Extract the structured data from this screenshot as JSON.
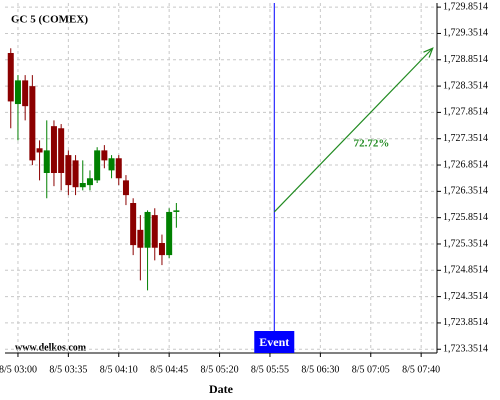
{
  "chart_data": {
    "type": "candlestick",
    "title": "GC 5 (COMEX)",
    "x_label": "Date",
    "watermark": "www.delkos.com",
    "candles": {
      "x": [
        "8/5 02:55",
        "8/5 03:00",
        "8/5 03:05",
        "8/5 03:10",
        "8/5 03:15",
        "8/5 03:20",
        "8/5 03:25",
        "8/5 03:30",
        "8/5 03:35",
        "8/5 03:40",
        "8/5 03:45",
        "8/5 03:50",
        "8/5 03:55",
        "8/5 04:00",
        "8/5 04:05",
        "8/5 04:10",
        "8/5 04:15",
        "8/5 04:20",
        "8/5 04:25",
        "8/5 04:30",
        "8/5 04:35",
        "8/5 04:40",
        "8/5 04:45",
        "8/5 04:50"
      ],
      "open": [
        1728.98,
        1728.01,
        1728.46,
        1728.35,
        1727.17,
        1726.7,
        1727.59,
        1727.55,
        1727.04,
        1726.94,
        1726.43,
        1726.47,
        1726.56,
        1727.13,
        1726.75,
        1726.98,
        1726.56,
        1726.13,
        1725.62,
        1725.28,
        1725.9,
        1725.37,
        1725.14,
        1725.96
      ],
      "high": [
        1729.07,
        1728.56,
        1728.56,
        1728.56,
        1727.32,
        1727.7,
        1727.7,
        1727.63,
        1727.13,
        1727.04,
        1726.94,
        1726.75,
        1727.19,
        1727.23,
        1727.04,
        1727.04,
        1726.66,
        1726.22,
        1725.9,
        1725.99,
        1726.03,
        1725.53,
        1726.03,
        1726.13
      ],
      "low": [
        1727.55,
        1727.32,
        1727.7,
        1726.85,
        1726.56,
        1726.22,
        1726.45,
        1726.37,
        1726.28,
        1726.28,
        1726.37,
        1726.37,
        1726.51,
        1726.79,
        1726.6,
        1726.47,
        1726.09,
        1725.14,
        1724.66,
        1724.47,
        1725.04,
        1724.95,
        1725.08,
        1725.66
      ],
      "close": [
        1728.06,
        1728.46,
        1727.97,
        1726.94,
        1727.09,
        1727.13,
        1726.7,
        1726.7,
        1726.47,
        1726.43,
        1726.51,
        1726.6,
        1727.13,
        1726.94,
        1726.98,
        1726.6,
        1726.28,
        1725.33,
        1725.28,
        1725.96,
        1725.28,
        1725.14,
        1725.96,
        1725.99
      ]
    },
    "up_color": "#008000",
    "down_color": "#8b0000",
    "event": {
      "label": "Event",
      "x": "8/5 05:58",
      "color": "#0000ff"
    },
    "arrow": {
      "label": "72.72%",
      "x": [
        "8/5 05:58",
        "8/5 07:48"
      ],
      "y": [
        1725.96,
        1729.07
      ],
      "color": "#228b22"
    },
    "xlim": [
      "8/5 02:51",
      "8/5 07:51"
    ],
    "xticks": [
      "8/5 03:00",
      "8/5 03:35",
      "8/5 04:10",
      "8/5 04:45",
      "8/5 05:20",
      "8/5 05:55",
      "8/5 06:30",
      "8/5 07:05",
      "8/5 07:40"
    ],
    "ylim": [
      1723.28,
      1729.93
    ],
    "yticks": [
      {
        "value": 1723.3514,
        "label": "1,723.3514"
      },
      {
        "value": 1723.8514,
        "label": "1,723.8514"
      },
      {
        "value": 1724.3514,
        "label": "1,724.3514"
      },
      {
        "value": 1724.8514,
        "label": "1,724.8514"
      },
      {
        "value": 1725.3514,
        "label": "1,725.3514"
      },
      {
        "value": 1725.8514,
        "label": "1,725.8514"
      },
      {
        "value": 1726.3514,
        "label": "1,726.3514"
      },
      {
        "value": 1726.8514,
        "label": "1,726.8514"
      },
      {
        "value": 1727.3514,
        "label": "1,727.3514"
      },
      {
        "value": 1727.8514,
        "label": "1,727.8514"
      },
      {
        "value": 1728.3514,
        "label": "1,728.3514"
      },
      {
        "value": 1728.8514,
        "label": "1,728.8514"
      },
      {
        "value": 1729.3514,
        "label": "1,729.3514"
      },
      {
        "value": 1729.8514,
        "label": "1,729.8514"
      }
    ],
    "grid": true
  }
}
